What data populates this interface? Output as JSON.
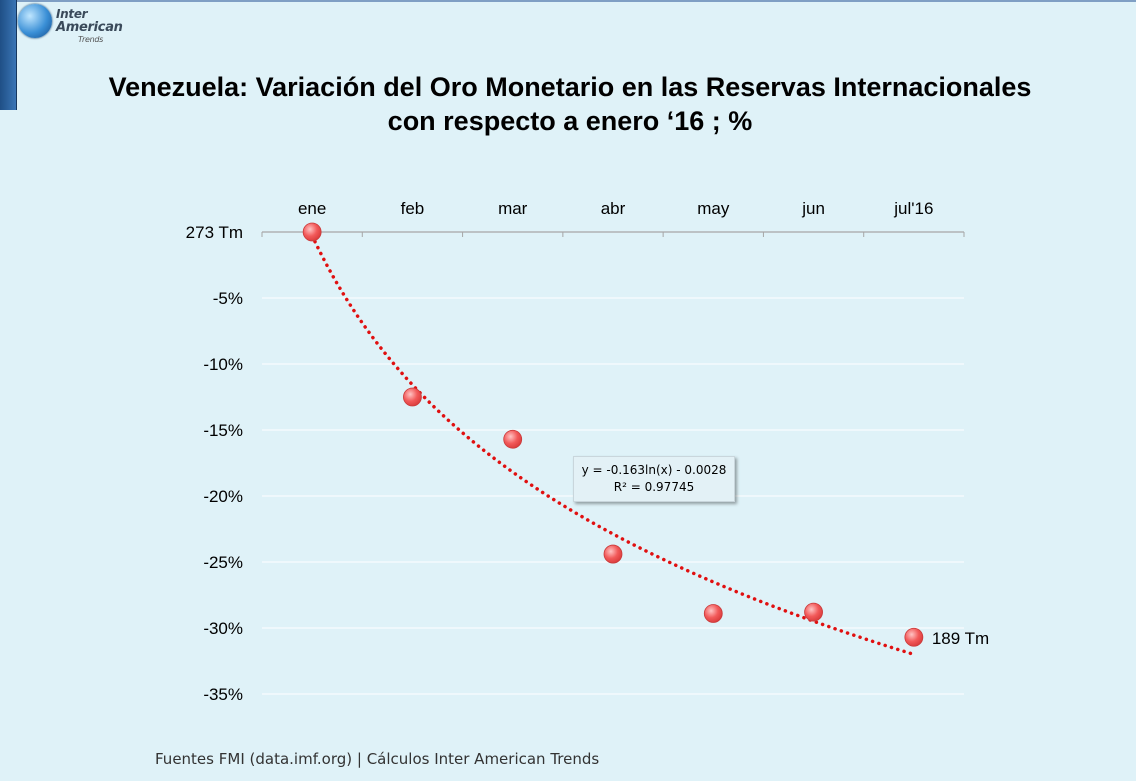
{
  "logo": {
    "line1": "Inter",
    "line2": "American",
    "line3": "Trends"
  },
  "title": {
    "line1": "Venezuela: Variación del Oro Monetario en las Reservas Internacionales",
    "line2": "con respecto a enero ‘16 ; %"
  },
  "source": "Fuentes FMI (data.imf.org) | Cálculos Inter American Trends",
  "colors": {
    "background": "#dff2f8",
    "point_fill": "#f25a5a",
    "trendline": "#e01010",
    "gridline": "#ffffff",
    "axis": "#a6a6a6"
  },
  "chart_data": {
    "type": "scatter",
    "categories": [
      "ene",
      "feb",
      "mar",
      "abr",
      "may",
      "jun",
      "jul'16"
    ],
    "values": [
      0,
      -12.5,
      -15.7,
      -24.4,
      -28.9,
      -28.8,
      -30.7
    ],
    "value_unit": "%",
    "yticks": [
      {
        "value": 0,
        "label": "273 Tm"
      },
      {
        "value": -5,
        "label": "-5%"
      },
      {
        "value": -10,
        "label": "-10%"
      },
      {
        "value": -15,
        "label": "-15%"
      },
      {
        "value": -20,
        "label": "-20%"
      },
      {
        "value": -25,
        "label": "-25%"
      },
      {
        "value": -30,
        "label": "-30%"
      },
      {
        "value": -35,
        "label": "-35%"
      }
    ],
    "ylim": [
      -35,
      0
    ],
    "x_axis_position": "top",
    "grid": true,
    "point_labels": [
      {
        "index": 6,
        "text": "189 Tm"
      }
    ],
    "trendline": {
      "type": "logarithmic",
      "a": -0.163,
      "b": -0.0028,
      "equation": "y = -0.163ln(x) - 0.0028",
      "r_squared": "R² = 0.97745"
    }
  }
}
